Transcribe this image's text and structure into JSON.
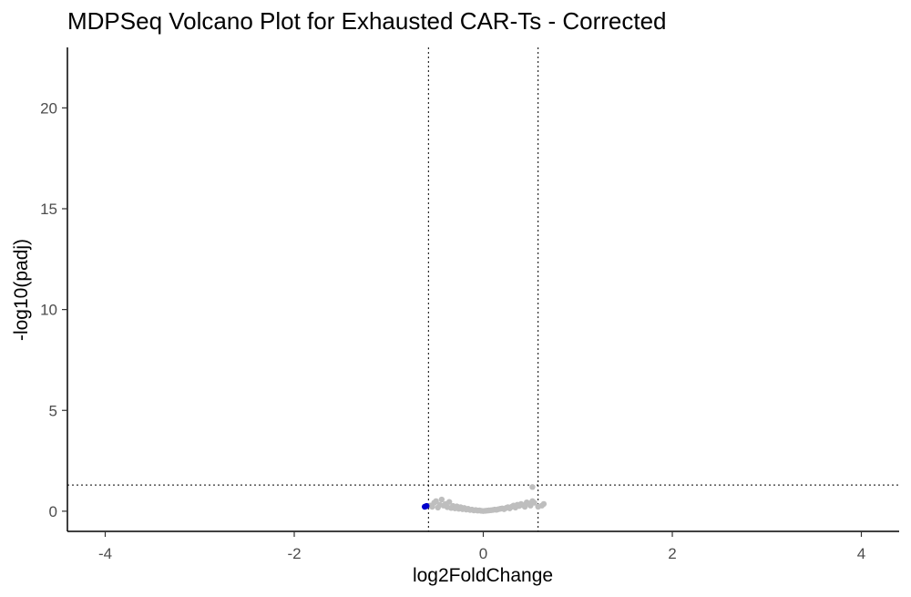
{
  "chart_data": {
    "type": "scatter",
    "title": "MDPSeq Volcano Plot for Exhausted CAR-Ts - Corrected",
    "xlabel": "log2FoldChange",
    "ylabel": "-log10(padj)",
    "xlim": [
      -4.4,
      4.4
    ],
    "ylim": [
      -1.0,
      23.0
    ],
    "x_ticks": [
      -4,
      -2,
      0,
      2,
      4
    ],
    "y_ticks": [
      0,
      5,
      10,
      15,
      20
    ],
    "thresholds": {
      "x": [
        -0.58,
        0.58
      ],
      "y": 1.3
    },
    "grid": false,
    "colors": {
      "not_significant": "#bebebe",
      "significant": "#0000cd",
      "threshold_line": "#000000"
    },
    "series": [
      {
        "color": "#bebebe",
        "points": [
          [
            -0.56,
            0.28
          ],
          [
            -0.54,
            0.22
          ],
          [
            -0.52,
            0.42
          ],
          [
            -0.5,
            0.5
          ],
          [
            -0.48,
            0.18
          ],
          [
            -0.46,
            0.32
          ],
          [
            -0.44,
            0.58
          ],
          [
            -0.42,
            0.28
          ],
          [
            -0.4,
            0.36
          ],
          [
            -0.38,
            0.2
          ],
          [
            -0.36,
            0.46
          ],
          [
            -0.34,
            0.16
          ],
          [
            -0.32,
            0.26
          ],
          [
            -0.3,
            0.14
          ],
          [
            -0.28,
            0.24
          ],
          [
            -0.26,
            0.12
          ],
          [
            -0.24,
            0.2
          ],
          [
            -0.22,
            0.1
          ],
          [
            -0.2,
            0.16
          ],
          [
            -0.18,
            0.08
          ],
          [
            -0.16,
            0.12
          ],
          [
            -0.14,
            0.06
          ],
          [
            -0.12,
            0.08
          ],
          [
            -0.1,
            0.04
          ],
          [
            -0.08,
            0.06
          ],
          [
            -0.06,
            0.03
          ],
          [
            -0.04,
            0.04
          ],
          [
            -0.02,
            0.02
          ],
          [
            0.0,
            0.01
          ],
          [
            0.02,
            0.02
          ],
          [
            0.04,
            0.03
          ],
          [
            0.06,
            0.04
          ],
          [
            0.08,
            0.05
          ],
          [
            0.1,
            0.06
          ],
          [
            0.12,
            0.08
          ],
          [
            0.14,
            0.07
          ],
          [
            0.16,
            0.1
          ],
          [
            0.18,
            0.12
          ],
          [
            0.2,
            0.14
          ],
          [
            0.22,
            0.1
          ],
          [
            0.24,
            0.16
          ],
          [
            0.26,
            0.2
          ],
          [
            0.28,
            0.14
          ],
          [
            0.3,
            0.22
          ],
          [
            0.32,
            0.28
          ],
          [
            0.34,
            0.18
          ],
          [
            0.36,
            0.32
          ],
          [
            0.38,
            0.26
          ],
          [
            0.4,
            0.36
          ],
          [
            0.42,
            0.3
          ],
          [
            0.44,
            0.22
          ],
          [
            0.46,
            0.44
          ],
          [
            0.48,
            0.38
          ],
          [
            0.5,
            0.28
          ],
          [
            0.52,
            0.5
          ],
          [
            0.54,
            0.42
          ],
          [
            0.58,
            0.22
          ],
          [
            0.62,
            0.28
          ],
          [
            0.64,
            0.36
          ],
          [
            0.52,
            1.2
          ]
        ]
      },
      {
        "color": "#0000cd",
        "points": [
          [
            -0.62,
            0.22
          ],
          [
            -0.6,
            0.26
          ],
          [
            -0.61,
            0.24
          ]
        ]
      }
    ]
  }
}
